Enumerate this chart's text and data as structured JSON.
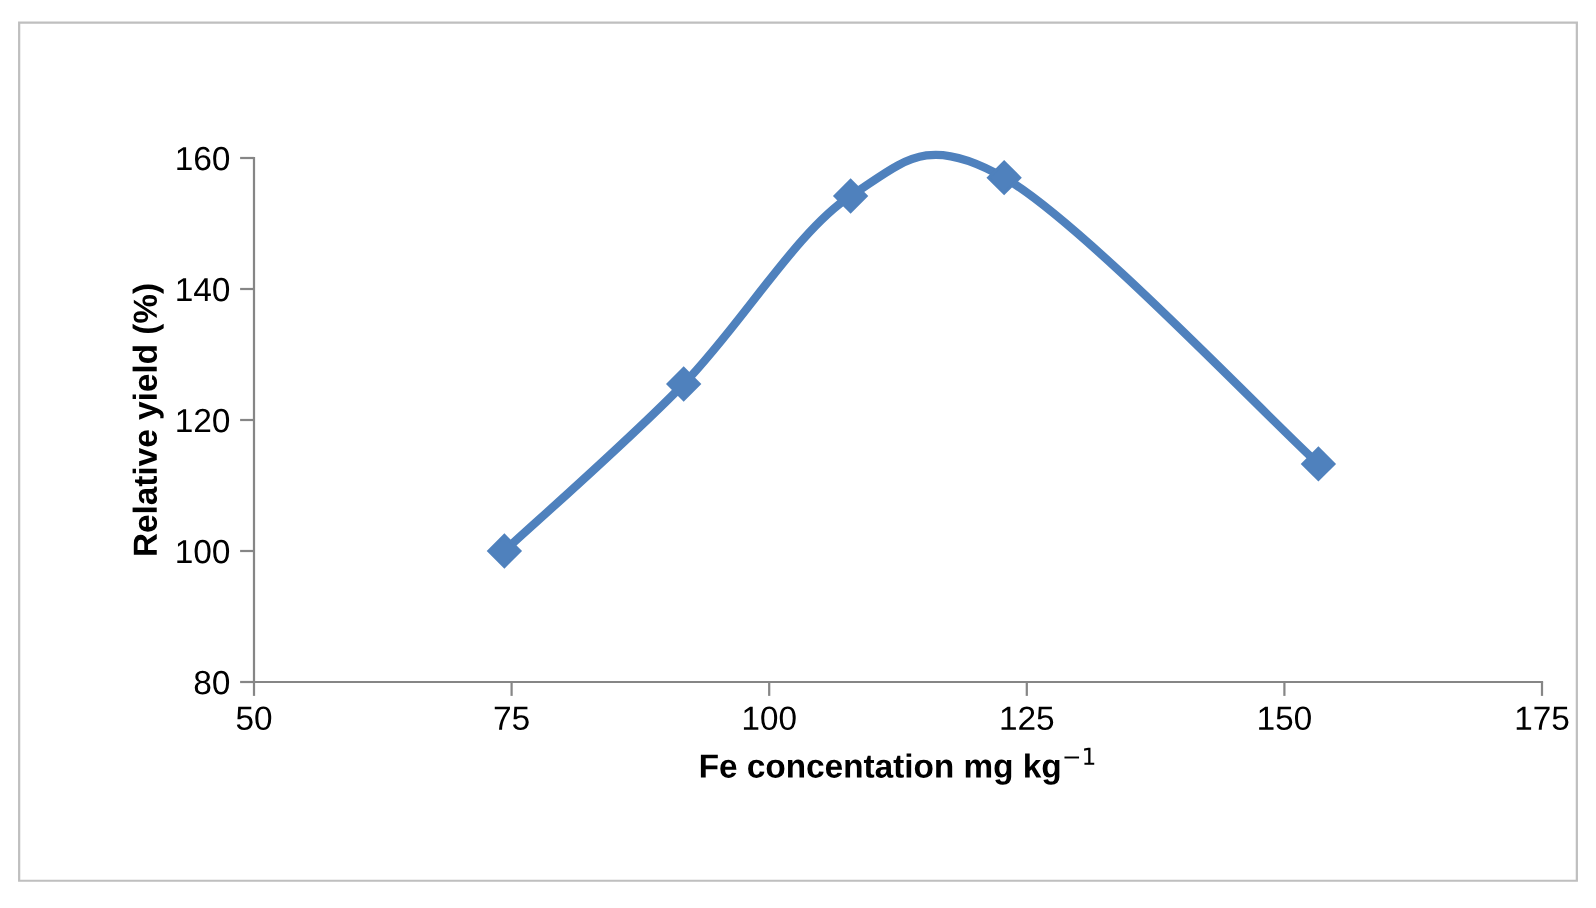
{
  "chart_data": {
    "type": "line",
    "xlabel": "Fe concentation mg kg$^{−1}$",
    "ylabel": "Relative yield (%)",
    "series": [
      {
        "color": "#4f81bd",
        "x": [
          74.3,
          91.7,
          107.9,
          122.8,
          153.3
        ],
        "values": [
          100,
          125.5,
          154.2,
          157,
          113.3
        ]
      }
    ],
    "xlim": [
      50,
      175
    ],
    "xticks": [
      50,
      75,
      100,
      125,
      150,
      175
    ],
    "ylim": [
      80,
      160
    ],
    "yticks": [
      80,
      100,
      120,
      140,
      160
    ],
    "grid": false,
    "legend": false,
    "marker": "diamond",
    "line_style": "solid"
  }
}
